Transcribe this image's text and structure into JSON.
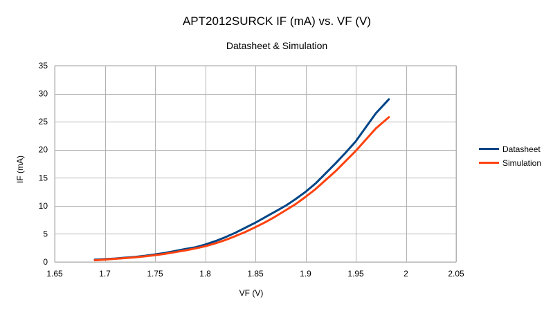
{
  "chart_data": {
    "type": "line",
    "title": "APT2012SURCK IF (mA) vs. VF (V)",
    "subtitle": "Datasheet & Simulation",
    "xlabel": "VF (V)",
    "ylabel": "IF (mA)",
    "xlim": [
      1.65,
      2.05
    ],
    "ylim": [
      0,
      35
    ],
    "x_ticks": [
      "1.65",
      "1.7",
      "1.75",
      "1.8",
      "1.85",
      "1.9",
      "1.95",
      "2",
      "2.05"
    ],
    "y_ticks": [
      "0",
      "5",
      "10",
      "15",
      "20",
      "25",
      "30",
      "35"
    ],
    "grid": true,
    "legend": "right",
    "series": [
      {
        "name": "Datasheet",
        "color": "#004586",
        "points": [
          [
            1.69,
            0.4
          ],
          [
            1.7,
            0.5
          ],
          [
            1.71,
            0.6
          ],
          [
            1.72,
            0.75
          ],
          [
            1.73,
            0.9
          ],
          [
            1.74,
            1.1
          ],
          [
            1.75,
            1.35
          ],
          [
            1.76,
            1.6
          ],
          [
            1.77,
            1.95
          ],
          [
            1.78,
            2.3
          ],
          [
            1.79,
            2.6
          ],
          [
            1.8,
            3.1
          ],
          [
            1.81,
            3.7
          ],
          [
            1.82,
            4.4
          ],
          [
            1.83,
            5.2
          ],
          [
            1.84,
            6.1
          ],
          [
            1.85,
            7.0
          ],
          [
            1.86,
            8.0
          ],
          [
            1.87,
            9.0
          ],
          [
            1.88,
            10.0
          ],
          [
            1.89,
            11.2
          ],
          [
            1.9,
            12.5
          ],
          [
            1.91,
            14.0
          ],
          [
            1.92,
            15.8
          ],
          [
            1.93,
            17.6
          ],
          [
            1.94,
            19.5
          ],
          [
            1.95,
            21.5
          ],
          [
            1.96,
            24.0
          ],
          [
            1.97,
            26.5
          ],
          [
            1.983,
            29.0
          ]
        ]
      },
      {
        "name": "Simulation",
        "color": "#ff420e",
        "points": [
          [
            1.69,
            0.3
          ],
          [
            1.7,
            0.42
          ],
          [
            1.71,
            0.55
          ],
          [
            1.72,
            0.68
          ],
          [
            1.73,
            0.82
          ],
          [
            1.74,
            1.0
          ],
          [
            1.75,
            1.2
          ],
          [
            1.76,
            1.45
          ],
          [
            1.77,
            1.75
          ],
          [
            1.78,
            2.05
          ],
          [
            1.79,
            2.4
          ],
          [
            1.8,
            2.8
          ],
          [
            1.81,
            3.3
          ],
          [
            1.82,
            3.9
          ],
          [
            1.83,
            4.6
          ],
          [
            1.84,
            5.35
          ],
          [
            1.85,
            6.2
          ],
          [
            1.86,
            7.1
          ],
          [
            1.87,
            8.1
          ],
          [
            1.88,
            9.2
          ],
          [
            1.89,
            10.3
          ],
          [
            1.9,
            11.6
          ],
          [
            1.91,
            13.0
          ],
          [
            1.92,
            14.6
          ],
          [
            1.93,
            16.2
          ],
          [
            1.94,
            18.0
          ],
          [
            1.95,
            19.8
          ],
          [
            1.96,
            21.8
          ],
          [
            1.97,
            23.8
          ],
          [
            1.983,
            25.8
          ]
        ]
      }
    ]
  }
}
